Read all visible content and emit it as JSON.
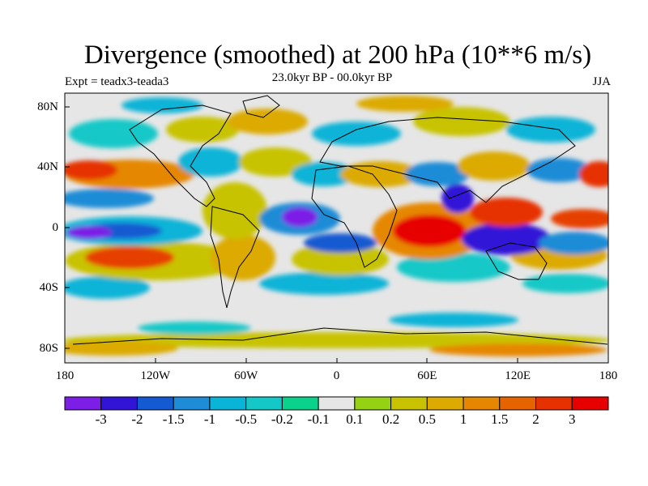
{
  "title": "Divergence (smoothed) at 200 hPa (10**6 m/s)",
  "expt_label": "Expt = teadx3-teada3",
  "period_label": "23.0kyr BP - 00.0kyr BP",
  "season_label": "JJA",
  "lat_labels": [
    "80N",
    "40N",
    "0",
    "40S",
    "80S"
  ],
  "lon_labels": [
    "180",
    "120W",
    "60W",
    "0",
    "60E",
    "120E",
    "180"
  ],
  "colorbar": {
    "levels": [
      "-3",
      "-2",
      "-1.5",
      "-1",
      "-0.5",
      "-0.2",
      "-0.1",
      "0.1",
      "0.2",
      "0.5",
      "1",
      "1.5",
      "2",
      "3"
    ],
    "colors": [
      "#7d1ee6",
      "#3214d7",
      "#145ad2",
      "#1e8cd7",
      "#0ab4d7",
      "#14c8c8",
      "#0ad28c",
      "#e6e6e6",
      "#96d214",
      "#c8c300",
      "#dcaa00",
      "#e68700",
      "#e66400",
      "#e63200",
      "#e60000"
    ]
  }
}
